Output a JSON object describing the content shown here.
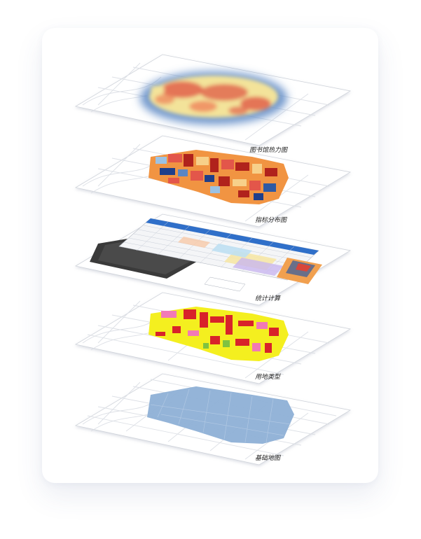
{
  "layers": [
    {
      "id": "heatmap",
      "caption": "图书馆热力图"
    },
    {
      "id": "choropleth",
      "caption": "指标分布图"
    },
    {
      "id": "spreadsheet",
      "caption": "统计计算"
    },
    {
      "id": "landuse",
      "caption": "用地类型"
    },
    {
      "id": "basemap",
      "caption": "基础地图"
    }
  ],
  "colors": {
    "card_background": "#ffffff",
    "plate_background": "#ffffff",
    "street_lines": "#d9dce3",
    "heat_blue": "#5b86c4",
    "heat_yellow": "#f3e39a",
    "heat_red": "#e0604a",
    "choropleth_dark_red": "#b0221c",
    "choropleth_orange": "#f19442",
    "choropleth_navy": "#1f3f8a",
    "landuse_yellow": "#f4ef1f",
    "landuse_red": "#d8232a",
    "landuse_pink": "#f27ab6",
    "basemap_blue": "#8eb0d6"
  }
}
